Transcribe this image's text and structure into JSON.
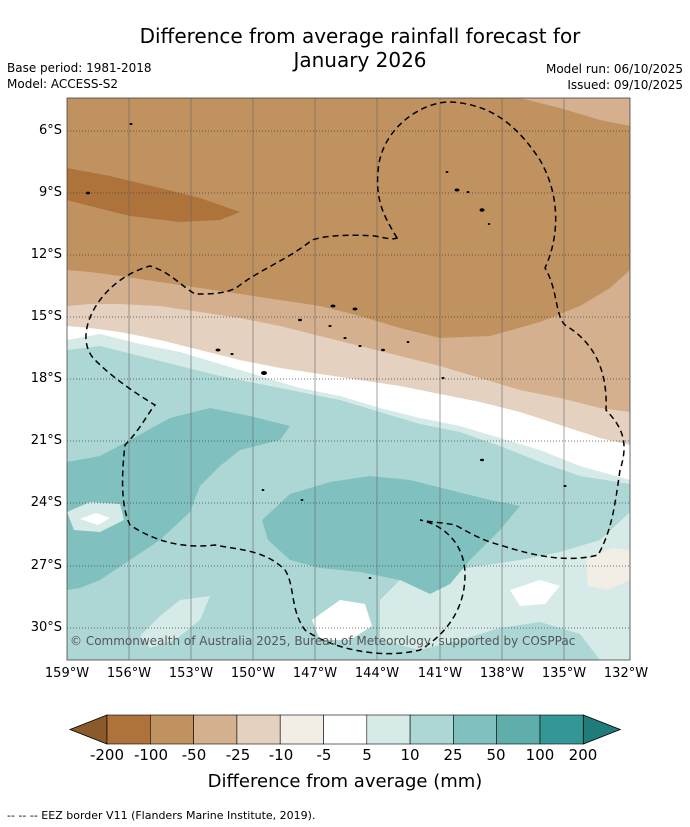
{
  "title_line1": "Difference from average rainfall forecast for",
  "title_line2": "January 2026",
  "base_period": "Base period: 1981-2018",
  "model": "Model: ACCESS-S2",
  "model_run": "Model run: 06/10/2025",
  "issued": "Issued: 09/10/2025",
  "lat_labels": [
    "6°S",
    "9°S",
    "12°S",
    "15°S",
    "18°S",
    "21°S",
    "24°S",
    "27°S",
    "30°S"
  ],
  "lon_labels": [
    "159°W",
    "156°W",
    "153°W",
    "150°W",
    "147°W",
    "144°W",
    "141°W",
    "138°W",
    "135°W",
    "132°W"
  ],
  "copyright": "© Commonwealth of Australia 2025, Bureau of Meteorology, supported by COSPPac",
  "colorbar": {
    "title": "Difference from average (mm)",
    "labels": [
      "-200",
      "-100",
      "-50",
      "-25",
      "-10",
      "-5",
      "5",
      "10",
      "25",
      "50",
      "100",
      "200"
    ],
    "colors": [
      "#8b5a2b",
      "#ad733b",
      "#c0925f",
      "#d4b08e",
      "#e4d1bf",
      "#f2ede5",
      "#ffffff",
      "#d6ebe8",
      "#acd7d5",
      "#80c1bf",
      "#5faeab",
      "#339895",
      "#1f7c79"
    ]
  },
  "footnote": "-- -- -- EEZ border V11 (Flanders Marine Institute, 2019)."
}
